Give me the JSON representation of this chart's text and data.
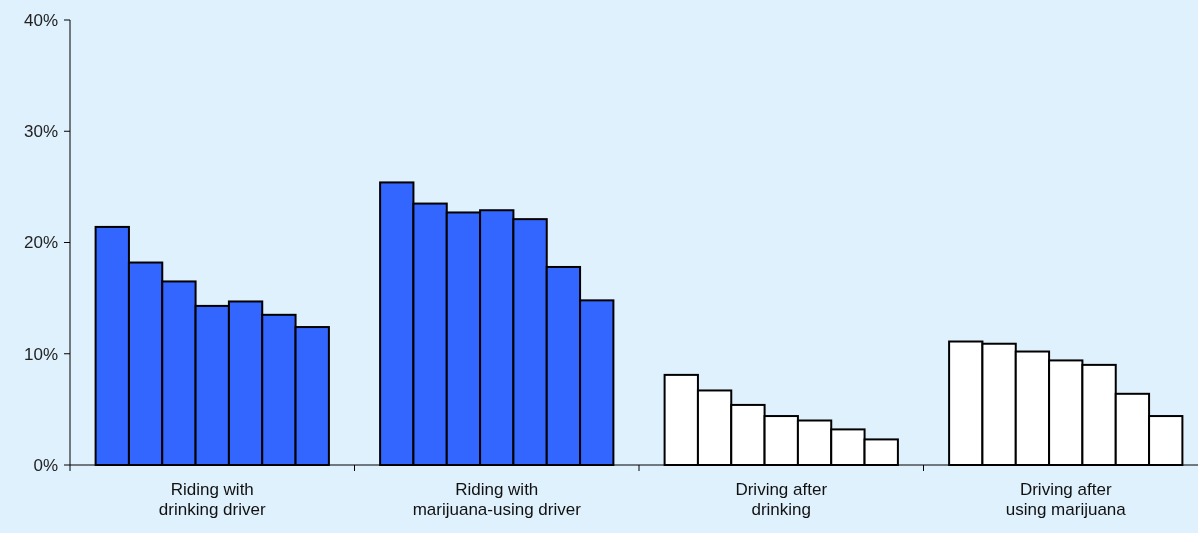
{
  "chart_data": {
    "type": "bar",
    "categories": [
      "Riding with\ndrinking driver",
      "Riding with\nmarijuana-using driver",
      "Driving after\ndrinking",
      "Driving after\nusing marijuana"
    ],
    "series": [
      {
        "colors": [
          "#3366ff",
          "#3366ff",
          "#ffffff",
          "#ffffff"
        ],
        "values": [
          21.4,
          25.4,
          8.1,
          11.1
        ]
      },
      {
        "colors": [
          "#3366ff",
          "#3366ff",
          "#ffffff",
          "#ffffff"
        ],
        "values": [
          18.2,
          23.5,
          6.7,
          10.9
        ]
      },
      {
        "colors": [
          "#3366ff",
          "#3366ff",
          "#ffffff",
          "#ffffff"
        ],
        "values": [
          16.5,
          22.7,
          5.4,
          10.2
        ]
      },
      {
        "colors": [
          "#3366ff",
          "#3366ff",
          "#ffffff",
          "#ffffff"
        ],
        "values": [
          14.3,
          22.9,
          4.4,
          9.4
        ]
      },
      {
        "colors": [
          "#3366ff",
          "#3366ff",
          "#ffffff",
          "#ffffff"
        ],
        "values": [
          14.7,
          22.1,
          4.0,
          9.0
        ]
      },
      {
        "colors": [
          "#3366ff",
          "#3366ff",
          "#ffffff",
          "#ffffff"
        ],
        "values": [
          13.5,
          17.8,
          3.2,
          6.4
        ]
      },
      {
        "colors": [
          "#3366ff",
          "#3366ff",
          "#ffffff",
          "#ffffff"
        ],
        "values": [
          12.4,
          14.8,
          2.3,
          4.4
        ]
      }
    ],
    "ylim": [
      0,
      40
    ],
    "yticks": [
      {
        "value": 0,
        "label": "0%"
      },
      {
        "value": 10,
        "label": "10%"
      },
      {
        "value": 20,
        "label": "20%"
      },
      {
        "value": 30,
        "label": "30%"
      },
      {
        "value": 40,
        "label": "40%"
      }
    ],
    "grid": false
  }
}
